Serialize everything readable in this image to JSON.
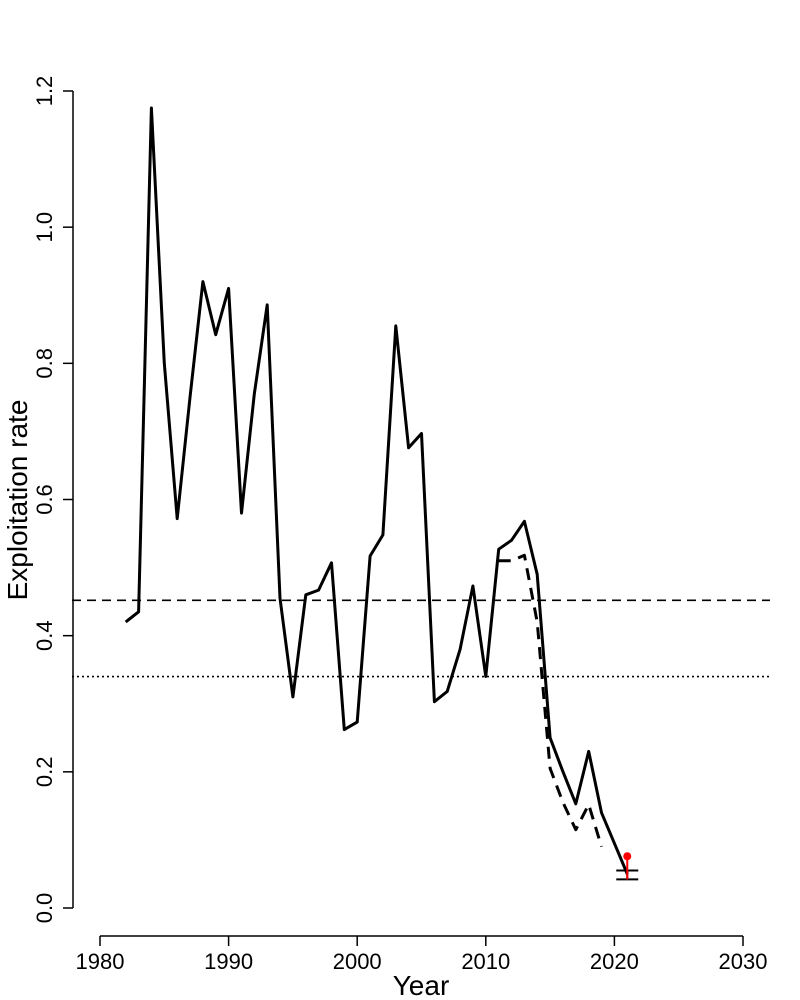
{
  "chart_data": {
    "type": "line",
    "title": "",
    "xlabel": "Year",
    "ylabel": "Exploitation rate",
    "xlim": [
      1980,
      2030
    ],
    "ylim": [
      0.0,
      1.2
    ],
    "xticks": [
      "1980",
      "1990",
      "2000",
      "2010",
      "2020",
      "2030"
    ],
    "yticks": [
      "0.0",
      "0.2",
      "0.4",
      "0.6",
      "0.8",
      "1.0",
      "1.2"
    ],
    "grid": false,
    "series": [
      {
        "style": "solid",
        "color": "#000000",
        "x": [
          1982,
          1983,
          1984,
          1985,
          1986,
          1987,
          1988,
          1989,
          1990,
          1991,
          1992,
          1993,
          1994,
          1995,
          1996,
          1997,
          1998,
          1999,
          2000,
          2001,
          2002,
          2003,
          2004,
          2005,
          2006,
          2007,
          2008,
          2009,
          2010,
          2011,
          2012,
          2013,
          2014,
          2015,
          2016,
          2017,
          2018,
          2019,
          2020,
          2021
        ],
        "y": [
          0.42,
          0.435,
          1.175,
          0.8,
          0.572,
          0.75,
          0.92,
          0.842,
          0.91,
          0.58,
          0.755,
          0.886,
          0.455,
          0.31,
          0.46,
          0.467,
          0.507,
          0.262,
          0.273,
          0.517,
          0.548,
          0.855,
          0.676,
          0.697,
          0.303,
          0.318,
          0.38,
          0.473,
          0.34,
          0.527,
          0.54,
          0.568,
          0.49,
          0.25,
          0.2,
          0.153,
          0.23,
          0.14,
          0.095,
          0.05
        ]
      },
      {
        "style": "dashed",
        "color": "#000000",
        "x": [
          2011,
          2012,
          2013,
          2014,
          2015,
          2016,
          2017,
          2018,
          2019
        ],
        "y": [
          0.51,
          0.51,
          0.518,
          0.42,
          0.205,
          0.155,
          0.115,
          0.152,
          0.09
        ]
      }
    ],
    "reference_lines": [
      {
        "y": 0.452,
        "style": "dashed"
      },
      {
        "y": 0.34,
        "style": "dotted"
      }
    ],
    "interval": {
      "x": 2021,
      "low": 0.042,
      "high": 0.055
    },
    "highlight_point": {
      "x": 2021,
      "y": 0.076,
      "color": "#ff0000"
    }
  }
}
